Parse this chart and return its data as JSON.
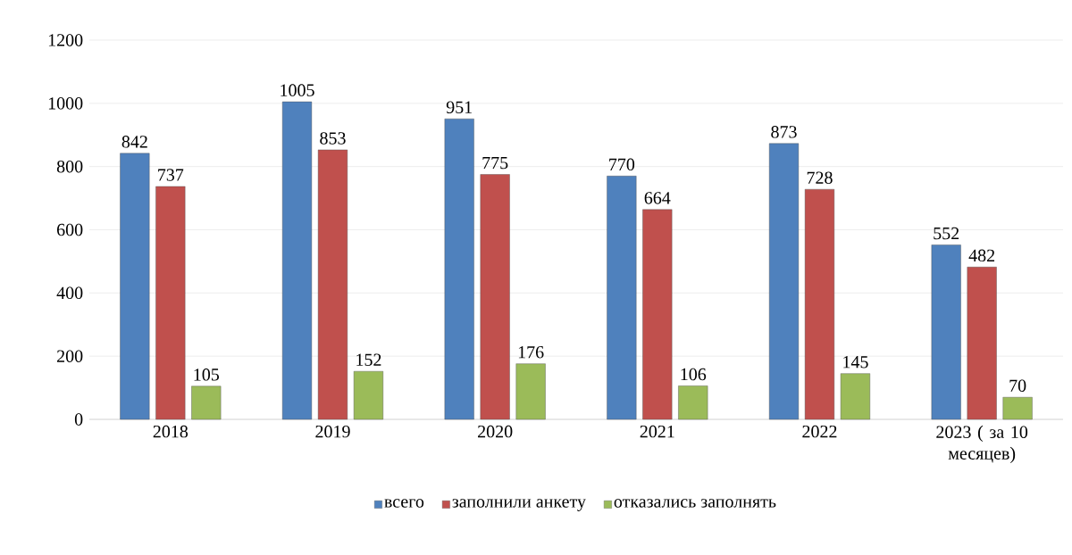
{
  "chart_data": {
    "type": "bar",
    "categories": [
      "2018",
      "2019",
      "2020",
      "2021",
      "2022",
      "2023 ( за 10 месяцев)"
    ],
    "series": [
      {
        "name": "всего",
        "color": "#4f81bd",
        "values": [
          842,
          1005,
          951,
          770,
          873,
          552
        ]
      },
      {
        "name": "заполнили анкету",
        "color": "#c0504d",
        "values": [
          737,
          853,
          775,
          664,
          728,
          482
        ]
      },
      {
        "name": "отказались заполнять",
        "color": "#9bbb59",
        "values": [
          105,
          152,
          176,
          106,
          145,
          70
        ]
      }
    ],
    "ylim": [
      0,
      1200
    ],
    "yticks": [
      0,
      200,
      400,
      600,
      800,
      1000,
      1200
    ],
    "grid": "y",
    "legend": "bottom",
    "data_labels": true
  }
}
